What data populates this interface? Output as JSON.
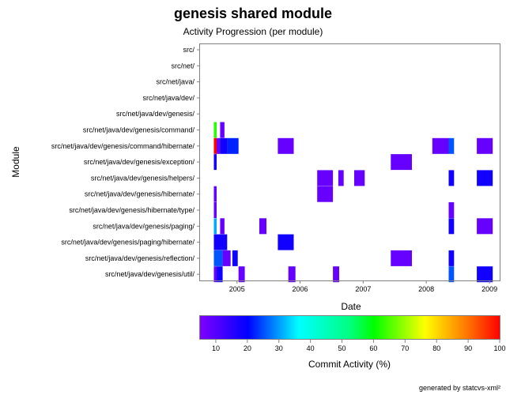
{
  "chart_data": {
    "type": "heatmap",
    "title": "genesis shared module",
    "subtitle": "Activity Progression (per module)",
    "xlabel": "Date",
    "ylabel": "Module",
    "x_ticks": [
      "2005",
      "2006",
      "2007",
      "2008",
      "2009"
    ],
    "xlim": [
      "2004-06",
      "2009-03"
    ],
    "modules": [
      "src/",
      "src/net/",
      "src/net/java/",
      "src/net/java/dev/",
      "src/net/java/dev/genesis/",
      "src/net/java/dev/genesis/command/",
      "src/net/java/dev/genesis/command/hibernate/",
      "src/net/java/dev/genesis/exception/",
      "src/net/java/dev/genesis/helpers/",
      "src/net/java/dev/genesis/hibernate/",
      "src/net/java/dev/genesis/hibernate/type/",
      "src/net/java/dev/genesis/paging/",
      "src/net/java/dev/genesis/paging/hibernate/",
      "src/net/java/dev/genesis/reflection/",
      "src/net/java/dev/genesis/util/"
    ],
    "cells": [
      {
        "module": 5,
        "start": "2004-08-20",
        "end": "2004-09-05",
        "activity": 58
      },
      {
        "module": 5,
        "start": "2004-09-25",
        "end": "2004-10-20",
        "activity": 8
      },
      {
        "module": 6,
        "start": "2004-08-20",
        "end": "2004-09-05",
        "activity": 100
      },
      {
        "module": 6,
        "start": "2004-09-05",
        "end": "2004-09-25",
        "activity": 8
      },
      {
        "module": 6,
        "start": "2004-09-25",
        "end": "2004-11-05",
        "activity": 18
      },
      {
        "module": 6,
        "start": "2004-11-05",
        "end": "2005-01-10",
        "activity": 22
      },
      {
        "module": 6,
        "start": "2005-08-25",
        "end": "2005-11-25",
        "activity": 8
      },
      {
        "module": 6,
        "start": "2008-02-05",
        "end": "2008-05-10",
        "activity": 8
      },
      {
        "module": 6,
        "start": "2008-05-10",
        "end": "2008-06-10",
        "activity": 25
      },
      {
        "module": 6,
        "start": "2008-10-20",
        "end": "2009-01-20",
        "activity": 8
      },
      {
        "module": 7,
        "start": "2004-08-20",
        "end": "2004-09-05",
        "activity": 18
      },
      {
        "module": 7,
        "start": "2007-06-10",
        "end": "2007-10-10",
        "activity": 8
      },
      {
        "module": 8,
        "start": "2006-04-10",
        "end": "2006-07-10",
        "activity": 8
      },
      {
        "module": 8,
        "start": "2006-08-10",
        "end": "2006-09-10",
        "activity": 8
      },
      {
        "module": 8,
        "start": "2006-11-10",
        "end": "2007-01-10",
        "activity": 8
      },
      {
        "module": 8,
        "start": "2008-05-10",
        "end": "2008-06-10",
        "activity": 18
      },
      {
        "module": 8,
        "start": "2008-10-20",
        "end": "2009-01-20",
        "activity": 18
      },
      {
        "module": 9,
        "start": "2004-08-20",
        "end": "2004-09-05",
        "activity": 8
      },
      {
        "module": 9,
        "start": "2006-04-10",
        "end": "2006-07-10",
        "activity": 8
      },
      {
        "module": 10,
        "start": "2004-08-20",
        "end": "2004-09-05",
        "activity": 8
      },
      {
        "module": 10,
        "start": "2008-05-10",
        "end": "2008-06-10",
        "activity": 8
      },
      {
        "module": 11,
        "start": "2004-08-20",
        "end": "2004-09-05",
        "activity": 30
      },
      {
        "module": 11,
        "start": "2004-09-25",
        "end": "2004-10-20",
        "activity": 8
      },
      {
        "module": 11,
        "start": "2005-05-10",
        "end": "2005-06-20",
        "activity": 8
      },
      {
        "module": 11,
        "start": "2008-05-10",
        "end": "2008-06-10",
        "activity": 18
      },
      {
        "module": 11,
        "start": "2008-10-20",
        "end": "2009-01-20",
        "activity": 8
      },
      {
        "module": 12,
        "start": "2004-08-20",
        "end": "2004-11-05",
        "activity": 18
      },
      {
        "module": 12,
        "start": "2005-08-25",
        "end": "2005-11-25",
        "activity": 18
      },
      {
        "module": 13,
        "start": "2004-08-20",
        "end": "2004-10-10",
        "activity": 25
      },
      {
        "module": 13,
        "start": "2004-10-10",
        "end": "2004-11-25",
        "activity": 8
      },
      {
        "module": 13,
        "start": "2004-12-05",
        "end": "2005-01-05",
        "activity": 18
      },
      {
        "module": 13,
        "start": "2007-06-10",
        "end": "2007-10-10",
        "activity": 8
      },
      {
        "module": 13,
        "start": "2008-05-10",
        "end": "2008-06-10",
        "activity": 18
      },
      {
        "module": 14,
        "start": "2004-08-20",
        "end": "2004-09-05",
        "activity": 8
      },
      {
        "module": 14,
        "start": "2004-09-05",
        "end": "2004-10-10",
        "activity": 18
      },
      {
        "module": 14,
        "start": "2005-01-10",
        "end": "2005-02-15",
        "activity": 8
      },
      {
        "module": 14,
        "start": "2005-10-25",
        "end": "2005-12-05",
        "activity": 8
      },
      {
        "module": 14,
        "start": "2006-07-10",
        "end": "2006-08-15",
        "activity": 8
      },
      {
        "module": 14,
        "start": "2008-05-10",
        "end": "2008-06-10",
        "activity": 25
      },
      {
        "module": 14,
        "start": "2008-10-20",
        "end": "2009-01-20",
        "activity": 18
      }
    ],
    "colorbar": {
      "label": "Commit Activity (%)",
      "ticks": [
        "10",
        "20",
        "30",
        "40",
        "50",
        "60",
        "70",
        "80",
        "90",
        "100"
      ],
      "range": [
        5,
        100
      ]
    },
    "grid": false
  },
  "footer": "generated by statcvs-xml²"
}
